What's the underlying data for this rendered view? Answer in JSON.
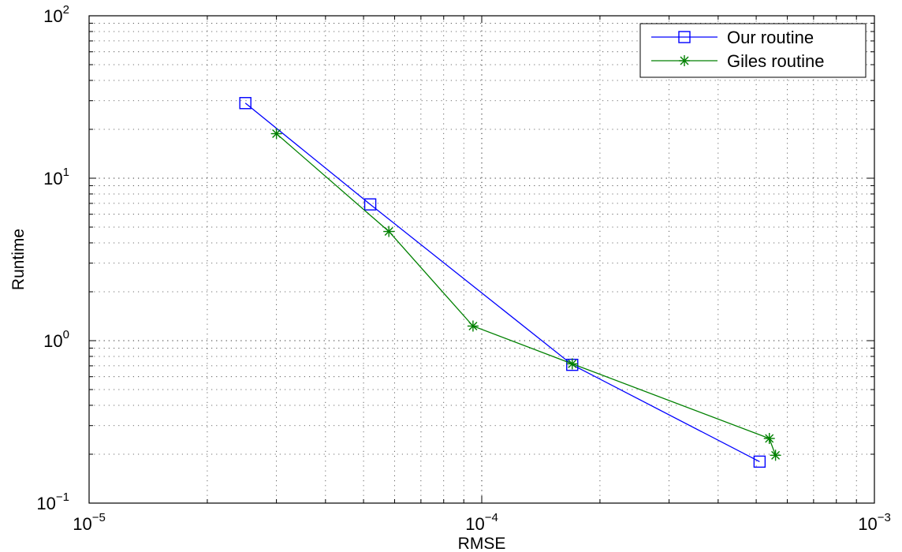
{
  "chart_data": {
    "type": "line",
    "title": "",
    "xlabel": "RMSE",
    "ylabel": "Runtime",
    "xscale": "log",
    "yscale": "log",
    "xlim": [
      1e-05,
      0.001
    ],
    "ylim": [
      0.1,
      100
    ],
    "grid": true,
    "legend_position": "top-right",
    "x_ticks": [
      {
        "base": "10",
        "exp": "−5"
      },
      {
        "base": "10",
        "exp": "−4"
      },
      {
        "base": "10",
        "exp": "−3"
      }
    ],
    "y_ticks": [
      {
        "base": "10",
        "exp": "−1"
      },
      {
        "base": "10",
        "exp": "0"
      },
      {
        "base": "10",
        "exp": "1"
      },
      {
        "base": "10",
        "exp": "2"
      }
    ],
    "series": [
      {
        "name": "Our routine",
        "color": "#0000ff",
        "marker": "square",
        "x": [
          2.5e-05,
          5.2e-05,
          0.00017,
          0.00051
        ],
        "y": [
          29.0,
          6.9,
          0.71,
          0.18
        ]
      },
      {
        "name": "Giles routine",
        "color": "#008000",
        "marker": "star",
        "x": [
          3e-05,
          5.8e-05,
          9.5e-05,
          0.00017,
          0.00054,
          0.00056
        ],
        "y": [
          18.8,
          4.7,
          1.23,
          0.72,
          0.25,
          0.197
        ]
      }
    ]
  }
}
